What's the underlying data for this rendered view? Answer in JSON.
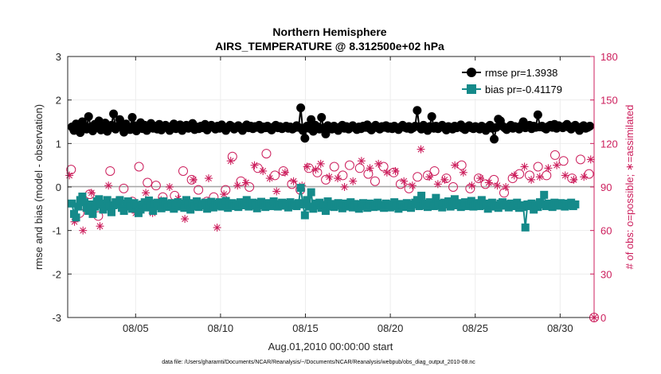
{
  "chart_data": {
    "type": "line",
    "title": "Northern Hemisphere",
    "subtitle": "AIRS_TEMPERATURE @ 8.312500e+02 hPa",
    "xlabel": "Aug.01,2010 00:00:00 start",
    "ylabel": "rmse and bias (model - observation)",
    "ylabel_right": "# of obs: o=possible; ∗=assimilated",
    "footnote": "data file: /Users/gharamti/Documents/NCAR/Reanalysis/~/Documents/NCAR/Reanalysis/webpub/obs_diag_output_2010-08.nc",
    "xlim": [
      1,
      32
    ],
    "ylim": [
      -3,
      3
    ],
    "ylim_right": [
      0,
      180
    ],
    "x_ticks": [
      {
        "x": 5,
        "label": "08/05"
      },
      {
        "x": 10,
        "label": "08/10"
      },
      {
        "x": 15,
        "label": "08/15"
      },
      {
        "x": 20,
        "label": "08/20"
      },
      {
        "x": 25,
        "label": "08/25"
      },
      {
        "x": 30,
        "label": "08/30"
      }
    ],
    "y_ticks": [
      -3,
      -2,
      -1,
      0,
      1,
      2,
      3
    ],
    "y_ticks_right": [
      0,
      30,
      60,
      90,
      120,
      150,
      180
    ],
    "grid": true,
    "legend_position": "top-right",
    "colors": {
      "rmse": "#000000",
      "bias": "#158a8a",
      "obs": "#cc1e5c",
      "zero_line": "#a6a6a6"
    },
    "rmse_seed": [
      1.38,
      1.3,
      1.45,
      1.35,
      1.25,
      1.5,
      1.4,
      1.33,
      1.62,
      1.38,
      1.29,
      1.44,
      1.36,
      1.52,
      1.31,
      1.4,
      1.47,
      1.28,
      1.35,
      1.42,
      1.68,
      1.33,
      1.4,
      1.55,
      1.37,
      1.26,
      1.45,
      1.38,
      1.32,
      1.6,
      1.41,
      1.29,
      1.36,
      1.48,
      1.34,
      1.42,
      1.3,
      1.39,
      1.46,
      1.35,
      1.4,
      1.33,
      1.44,
      1.31,
      1.38,
      1.42,
      1.36,
      1.3,
      1.4,
      1.45,
      1.34,
      1.39,
      1.43,
      1.3,
      1.37,
      1.42,
      1.35,
      1.41,
      1.46,
      1.32,
      1.38,
      1.34,
      1.4,
      1.36,
      1.44,
      1.31,
      1.39,
      1.42,
      1.37,
      1.33,
      1.4,
      1.35,
      1.43,
      1.38,
      1.3,
      1.36,
      1.42,
      1.39,
      1.33,
      1.37,
      1.41,
      1.35,
      1.3,
      1.38,
      1.43,
      1.36,
      1.4,
      1.34,
      1.39,
      1.37,
      1.42,
      1.33,
      1.38,
      1.36,
      1.4,
      1.35,
      1.31,
      1.38,
      1.42,
      1.36,
      1.39,
      1.34,
      1.37,
      1.4,
      1.35,
      1.38,
      1.33,
      1.36,
      1.41,
      1.37,
      1.82,
      1.3,
      1.12,
      1.4,
      1.35,
      1.55,
      1.28,
      1.42,
      1.38,
      1.33,
      1.6,
      1.36,
      1.22,
      1.41,
      1.37,
      1.33,
      1.4,
      1.36,
      1.3,
      1.38,
      1.42,
      1.35,
      1.39,
      1.33,
      1.37,
      1.41,
      1.36,
      1.32,
      1.38,
      1.34,
      1.4,
      1.37,
      1.43,
      1.35,
      1.31,
      1.38,
      1.42,
      1.36,
      1.33,
      1.39,
      1.37,
      1.41,
      1.35,
      1.38,
      1.34,
      1.4,
      1.36,
      1.32,
      1.38,
      1.42,
      1.37,
      1.35,
      1.39,
      1.33,
      1.36,
      1.4,
      1.76,
      1.38,
      1.33,
      1.42,
      1.36,
      1.3,
      1.39,
      1.62,
      1.35,
      1.4,
      1.34,
      1.38,
      1.42,
      1.36,
      1.31,
      1.39,
      1.37,
      1.33,
      1.4,
      1.36,
      1.38,
      1.43,
      1.35,
      1.32,
      1.38,
      1.41,
      1.36,
      1.34,
      1.39,
      1.37,
      1.33,
      1.4,
      1.36,
      1.3,
      1.38,
      1.42,
      1.35,
      1.1,
      1.37,
      1.56,
      1.52,
      1.4,
      1.36,
      1.32,
      1.38,
      1.42,
      1.35,
      1.39,
      1.37,
      1.33,
      1.41,
      1.5,
      1.36,
      1.38,
      1.42,
      1.34,
      1.4,
      1.37,
      1.66,
      1.38,
      1.4,
      1.36,
      1.33,
      1.39,
      1.42,
      1.37,
      1.44,
      1.35,
      1.41,
      1.38,
      1.36,
      1.4,
      1.44,
      1.37,
      1.33,
      1.39,
      1.42,
      1.36,
      1.3,
      1.38,
      1.41,
      1.35,
      1.37,
      1.4
    ],
    "bias_seed": [
      -0.38,
      -0.62,
      -0.7,
      -0.45,
      -0.3,
      -0.22,
      -0.35,
      -0.48,
      -0.55,
      -0.4,
      -0.62,
      -0.45,
      -0.33,
      -0.28,
      -0.41,
      -0.52,
      -0.38,
      -0.3,
      -0.45,
      -0.58,
      -0.42,
      -0.35,
      -0.4,
      -0.3,
      -0.48,
      -0.55,
      -0.38,
      -0.33,
      -0.45,
      -0.5,
      -0.37,
      -0.42,
      -0.6,
      -0.52,
      -0.4,
      -0.35,
      -0.47,
      -0.31,
      -0.43,
      -0.55,
      -0.38,
      -0.36,
      -0.44,
      -0.49,
      -0.33,
      -0.39,
      -0.46,
      -0.4,
      -0.37,
      -0.5,
      -0.42,
      -0.35,
      -0.45,
      -0.38,
      -0.48,
      -0.3,
      -0.41,
      -0.52,
      -0.37,
      -0.44,
      -0.33,
      -0.46,
      -0.39,
      -0.42,
      -0.36,
      -0.5,
      -0.4,
      -0.34,
      -0.47,
      -0.38,
      -0.43,
      -0.35,
      -0.45,
      -0.4,
      -0.32,
      -0.48,
      -0.41,
      -0.37,
      -0.44,
      -0.39,
      -0.46,
      -0.35,
      -0.42,
      -0.38,
      -0.3,
      -0.45,
      -0.4,
      -0.36,
      -0.43,
      -0.49,
      -0.38,
      -0.34,
      -0.42,
      -0.46,
      -0.37,
      -0.4,
      -0.44,
      -0.33,
      -0.39,
      -0.45,
      -0.41,
      -0.36,
      -0.43,
      -0.38,
      -0.47,
      -0.35,
      -0.42,
      -0.39,
      -0.44,
      -0.37,
      -0.02,
      -0.4,
      -0.65,
      -0.3,
      -0.45,
      -0.12,
      -0.5,
      -0.38,
      -0.43,
      -0.36,
      -0.48,
      -0.41,
      -0.55,
      -0.33,
      -0.44,
      -0.39,
      -0.46,
      -0.4,
      -0.37,
      -0.43,
      -0.49,
      -0.38,
      -0.45,
      -0.41,
      -0.35,
      -0.47,
      -0.39,
      -0.43,
      -0.5,
      -0.4,
      -0.37,
      -0.44,
      -0.48,
      -0.38,
      -0.42,
      -0.46,
      -0.39,
      -0.36,
      -0.45,
      -0.41,
      -0.48,
      -0.38,
      -0.43,
      -0.47,
      -0.4,
      -0.35,
      -0.44,
      -0.5,
      -0.39,
      -0.42,
      -0.46,
      -0.37,
      -0.43,
      -0.48,
      -0.4,
      -0.36,
      -0.3,
      -0.44,
      -0.2,
      -0.38,
      -0.42,
      -0.46,
      -0.35,
      -0.41,
      -0.44,
      -0.25,
      -0.38,
      -0.43,
      -0.47,
      -0.36,
      -0.4,
      -0.33,
      -0.45,
      -0.39,
      -0.28,
      -0.42,
      -0.37,
      -0.46,
      -0.4,
      -0.35,
      -0.44,
      -0.38,
      -0.32,
      -0.45,
      -0.41,
      -0.37,
      -0.44,
      -0.3,
      -0.42,
      -0.38,
      -0.5,
      -0.4,
      -0.36,
      -0.45,
      -0.42,
      -0.48,
      -0.38,
      -0.35,
      -0.43,
      -0.4,
      -0.47,
      -0.38,
      -0.44,
      -0.41,
      -0.36,
      -0.48,
      -0.42,
      -0.46,
      -0.93,
      -0.4,
      -0.44,
      -0.38,
      -0.52,
      -0.41,
      -0.46,
      -0.35,
      -0.4,
      -0.18,
      -0.44,
      -0.38,
      -0.42,
      -0.46,
      -0.36,
      -0.4,
      -0.43,
      -0.37,
      -0.41,
      -0.45,
      -0.38,
      -0.42,
      -0.36,
      -0.44,
      -0.4
    ],
    "series": [
      {
        "name": "rmse pr=1.3938",
        "marker": "filled-circle"
      },
      {
        "name": "bias pr=-0.41179",
        "marker": "filled-square"
      },
      {
        "marker": "open-circle",
        "axis": "right"
      },
      {
        "marker": "asterisk",
        "axis": "right"
      }
    ],
    "obs_possible": [
      [
        1.2,
        102
      ],
      [
        1.7,
        72
      ],
      [
        2.3,
        85
      ],
      [
        2.8,
        70
      ],
      [
        3.5,
        101
      ],
      [
        4.3,
        89
      ],
      [
        4.8,
        80
      ],
      [
        5.2,
        104
      ],
      [
        5.7,
        93
      ],
      [
        6.2,
        91
      ],
      [
        6.6,
        83
      ],
      [
        7.3,
        84
      ],
      [
        7.8,
        101
      ],
      [
        8.3,
        95
      ],
      [
        8.7,
        88
      ],
      [
        9.2,
        80
      ],
      [
        9.6,
        83
      ],
      [
        10.3,
        88
      ],
      [
        10.7,
        111
      ],
      [
        11.2,
        94
      ],
      [
        11.7,
        90
      ],
      [
        12.2,
        103
      ],
      [
        12.7,
        113
      ],
      [
        13.2,
        98
      ],
      [
        13.7,
        101
      ],
      [
        14.2,
        92
      ],
      [
        14.7,
        88
      ],
      [
        15.2,
        103
      ],
      [
        15.7,
        100
      ],
      [
        16.2,
        95
      ],
      [
        16.7,
        104
      ],
      [
        17.2,
        98
      ],
      [
        17.6,
        105
      ],
      [
        18.2,
        103
      ],
      [
        18.7,
        99
      ],
      [
        19.1,
        94
      ],
      [
        19.6,
        104
      ],
      [
        20.2,
        100
      ],
      [
        20.6,
        92
      ],
      [
        21.1,
        89
      ],
      [
        21.6,
        97
      ],
      [
        22.2,
        98
      ],
      [
        22.6,
        101
      ],
      [
        23.3,
        96
      ],
      [
        23.7,
        90
      ],
      [
        24.2,
        105
      ],
      [
        24.7,
        89
      ],
      [
        25.2,
        96
      ],
      [
        25.6,
        92
      ],
      [
        26.1,
        95
      ],
      [
        26.7,
        86
      ],
      [
        27.2,
        96
      ],
      [
        27.6,
        99
      ],
      [
        28.2,
        98
      ],
      [
        28.7,
        104
      ],
      [
        29.2,
        98
      ],
      [
        29.7,
        112
      ],
      [
        30.2,
        108
      ],
      [
        30.7,
        96
      ],
      [
        31.2,
        109
      ],
      [
        31.7,
        99
      ]
    ],
    "obs_assimilated": [
      [
        1.1,
        98
      ],
      [
        1.4,
        66
      ],
      [
        1.9,
        60
      ],
      [
        2.4,
        86
      ],
      [
        2.9,
        63
      ],
      [
        3.4,
        91
      ],
      [
        4.0,
        81
      ],
      [
        4.5,
        75
      ],
      [
        5.0,
        72
      ],
      [
        5.6,
        86
      ],
      [
        6.0,
        72
      ],
      [
        6.5,
        81
      ],
      [
        7.0,
        90
      ],
      [
        7.5,
        82
      ],
      [
        7.9,
        68
      ],
      [
        8.4,
        95
      ],
      [
        8.8,
        80
      ],
      [
        9.3,
        96
      ],
      [
        9.8,
        62
      ],
      [
        10.2,
        85
      ],
      [
        10.6,
        108
      ],
      [
        11.0,
        91
      ],
      [
        11.5,
        93
      ],
      [
        12.0,
        105
      ],
      [
        12.5,
        101
      ],
      [
        12.9,
        96
      ],
      [
        13.3,
        87
      ],
      [
        13.8,
        100
      ],
      [
        14.3,
        94
      ],
      [
        14.8,
        91
      ],
      [
        15.1,
        104
      ],
      [
        15.6,
        102
      ],
      [
        15.9,
        106
      ],
      [
        16.4,
        97
      ],
      [
        16.9,
        96
      ],
      [
        17.3,
        90
      ],
      [
        17.8,
        94
      ],
      [
        18.3,
        108
      ],
      [
        18.8,
        103
      ],
      [
        19.3,
        106
      ],
      [
        19.8,
        100
      ],
      [
        20.3,
        101
      ],
      [
        20.8,
        94
      ],
      [
        21.3,
        91
      ],
      [
        21.8,
        116
      ],
      [
        22.3,
        97
      ],
      [
        22.8,
        92
      ],
      [
        23.2,
        95
      ],
      [
        23.8,
        105
      ],
      [
        24.3,
        100
      ],
      [
        24.8,
        91
      ],
      [
        25.3,
        96
      ],
      [
        25.8,
        93
      ],
      [
        26.3,
        91
      ],
      [
        26.8,
        90
      ],
      [
        27.3,
        98
      ],
      [
        27.9,
        104
      ],
      [
        28.3,
        95
      ],
      [
        28.8,
        97
      ],
      [
        29.3,
        103
      ],
      [
        29.8,
        105
      ],
      [
        30.3,
        98
      ],
      [
        30.8,
        95
      ],
      [
        31.4,
        97
      ],
      [
        31.8,
        109
      ]
    ]
  }
}
